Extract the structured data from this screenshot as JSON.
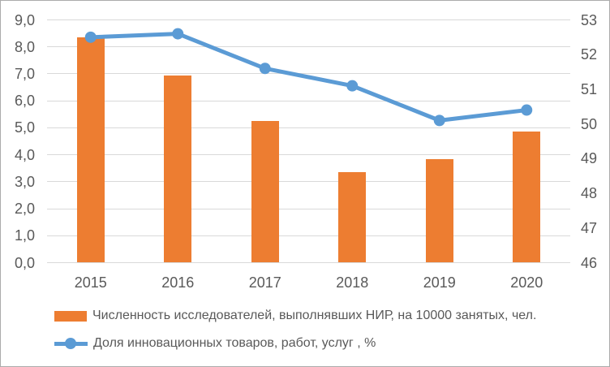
{
  "chart_data": {
    "type": "combo",
    "title": "",
    "categories": [
      "2015",
      "2016",
      "2017",
      "2018",
      "2019",
      "2020"
    ],
    "series": [
      {
        "name": "Численность исследователей, выполнявших НИР, на 10000 занятых, чел.",
        "type": "bar",
        "axis": "left",
        "color": "#ED7D31",
        "values": [
          8.35,
          6.95,
          5.25,
          3.35,
          3.85,
          4.85
        ]
      },
      {
        "name": "Доля инновационных товаров, работ, услуг , %",
        "type": "line",
        "axis": "right",
        "color": "#5B9BD5",
        "values": [
          52.5,
          52.6,
          51.6,
          51.1,
          50.1,
          50.4
        ]
      }
    ],
    "left_axis": {
      "min": 0,
      "max": 9,
      "step": 1,
      "tick_labels": [
        "0,0",
        "1,0",
        "2,0",
        "3,0",
        "4,0",
        "5,0",
        "6,0",
        "7,0",
        "8,0",
        "9,0"
      ]
    },
    "right_axis": {
      "min": 46,
      "max": 53,
      "step": 1,
      "tick_labels": [
        "46",
        "47",
        "48",
        "49",
        "50",
        "51",
        "52",
        "53"
      ]
    },
    "grid": true,
    "legend_position": "bottom-left",
    "styles": {
      "gridline_color": "#D9D9D9",
      "tick_color": "#595959",
      "background": "#FFFFFF",
      "border_color": "#ABABAB"
    }
  }
}
